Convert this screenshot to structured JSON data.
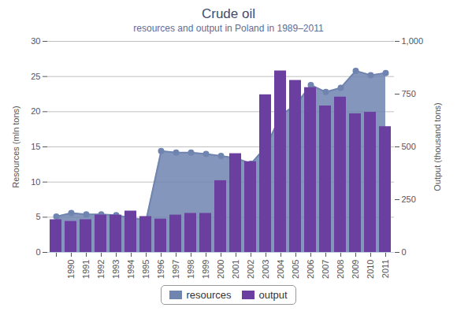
{
  "chart_data": {
    "type": "mixed",
    "title": "Crude oil",
    "subtitle": "resources and output in Poland in 1989–2011",
    "ylabel": "Resources (mln tons)",
    "y2label": "Output (thousand tons)",
    "categories": [
      null,
      "1990",
      "1991",
      "1992",
      "1993",
      "1994",
      "1995",
      "1996",
      "1997",
      "1998",
      "1999",
      "2000",
      "2001",
      "2002",
      "2003",
      "2004",
      "2005",
      "2006",
      "2007",
      "2008",
      "2009",
      "2010",
      "2011"
    ],
    "series": [
      {
        "name": "resources",
        "type": "area",
        "color": "#7084b0",
        "marker": "circle",
        "values": [
          5.1,
          5.6,
          5.4,
          5.4,
          5.3,
          4.9,
          4.6,
          14.4,
          14.2,
          14.2,
          14.0,
          13.7,
          13.4,
          12.6,
          15.0,
          19.5,
          21.0,
          23.8,
          22.8,
          23.4,
          25.8,
          25.2,
          25.5
        ]
      },
      {
        "name": "output",
        "type": "bar",
        "color": "#6a3fa0",
        "axis": "y2",
        "values": [
          155,
          147,
          155,
          177,
          177,
          196,
          170,
          158,
          177,
          185,
          185,
          340,
          468,
          430,
          747,
          860,
          815,
          781,
          694,
          736,
          657,
          664,
          596
        ]
      }
    ],
    "ylim": [
      0,
      30
    ],
    "yticks": [
      0,
      5,
      10,
      15,
      20,
      25,
      30
    ],
    "y2lim": [
      0,
      1000
    ],
    "y2ticks": [
      0,
      250,
      500,
      750,
      {
        "value": 1000,
        "label": "1,000"
      }
    ],
    "grid": true,
    "legend": "bottom"
  }
}
